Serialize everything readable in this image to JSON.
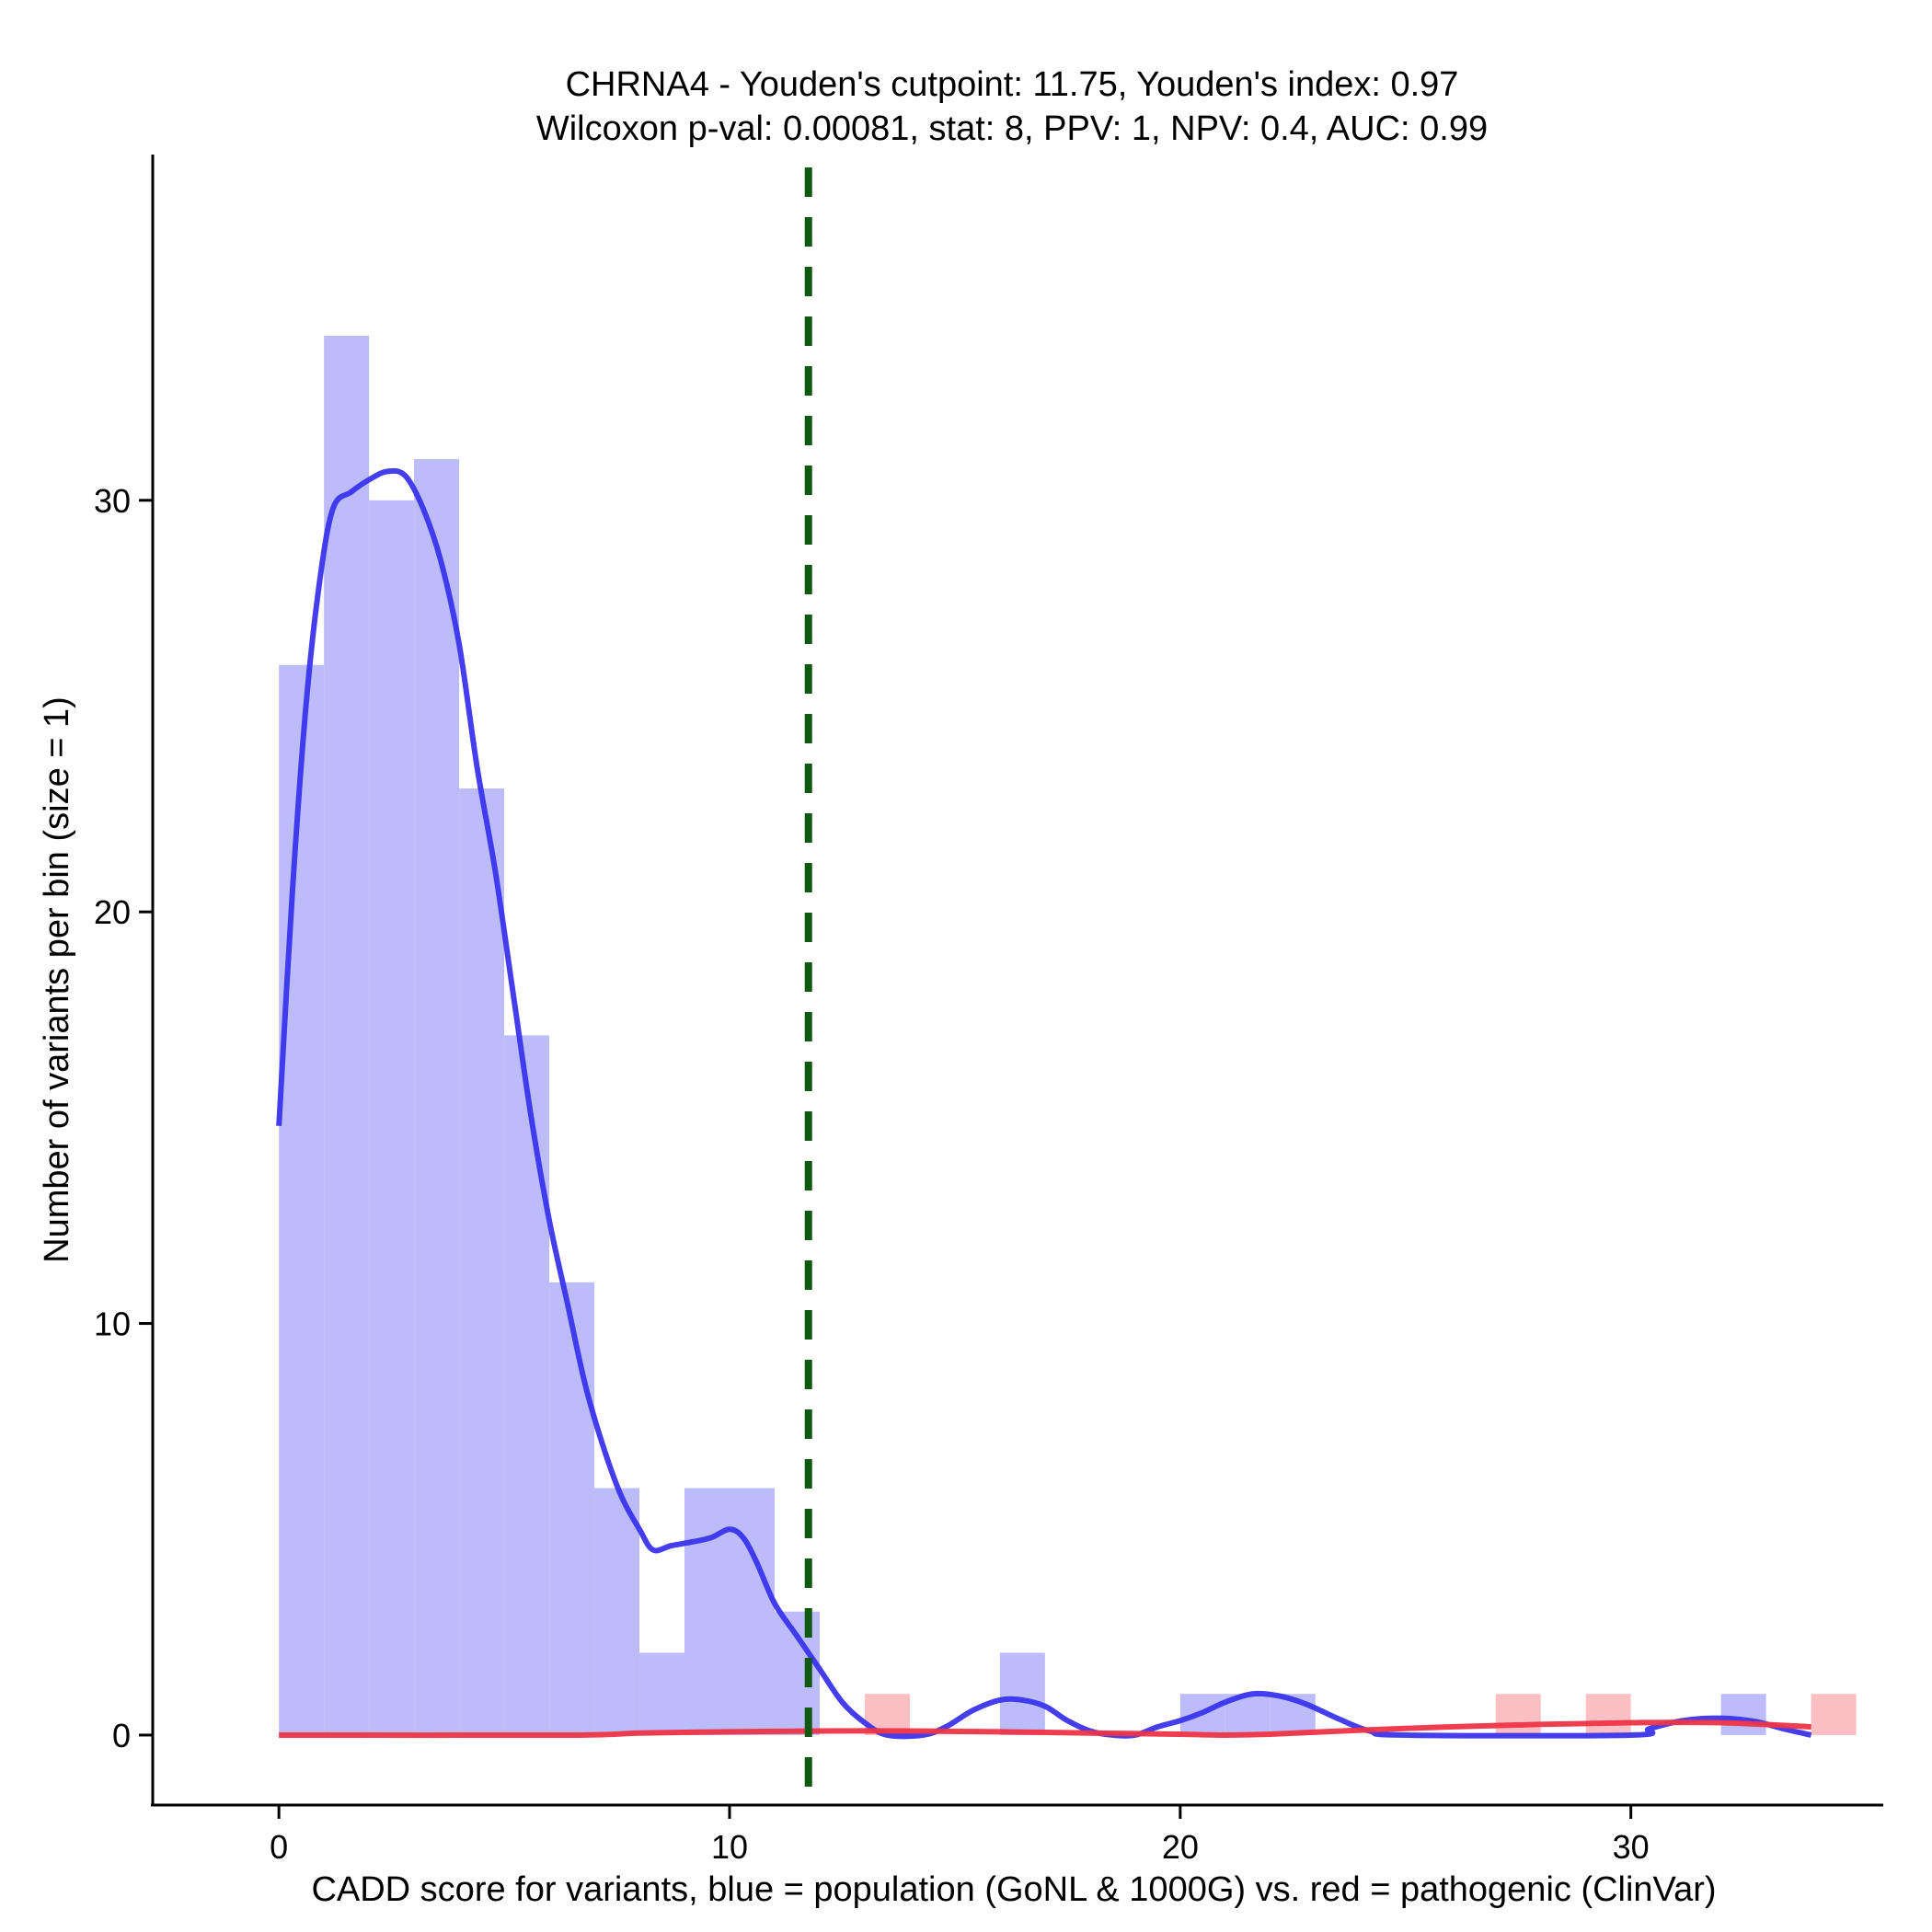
{
  "chart_data": {
    "type": "histogram",
    "title_lines": [
      "CHRNA4 - Youden's cutpoint: 11.75, Youden's index: 0.97",
      "Wilcoxon p-val: 0.00081, stat: 8, PPV: 1, NPV: 0.4, AUC: 0.99"
    ],
    "xlabel": "CADD score for variants, blue = population (GoNL & 1000G) vs. red = pathogenic (ClinVar)",
    "ylabel": "Number of variants per bin (size = 1)",
    "xlim": [
      -2.8,
      35.6
    ],
    "ylim": [
      -1.7,
      38.4
    ],
    "x_ticks": [
      0,
      10,
      20,
      30
    ],
    "y_ticks": [
      0,
      10,
      20,
      30
    ],
    "bin_width": 1,
    "cutpoint": 11.75,
    "colors": {
      "population_bar": "#bcbcfa",
      "pathogenic_bar": "#fbbfc4",
      "population_line": "#3a34ee",
      "pathogenic_line": "#ee3446",
      "cutpoint_line": "#0f5a10"
    },
    "series": [
      {
        "key": "population",
        "bins": [
          {
            "x0": 0,
            "count": 26
          },
          {
            "x0": 1,
            "count": 34
          },
          {
            "x0": 2,
            "count": 30
          },
          {
            "x0": 3,
            "count": 31
          },
          {
            "x0": 4,
            "count": 23
          },
          {
            "x0": 5,
            "count": 17
          },
          {
            "x0": 6,
            "count": 11
          },
          {
            "x0": 7,
            "count": 6
          },
          {
            "x0": 8,
            "count": 2
          },
          {
            "x0": 9,
            "count": 6
          },
          {
            "x0": 10,
            "count": 6
          },
          {
            "x0": 11,
            "count": 3
          },
          {
            "x0": 16,
            "count": 2
          },
          {
            "x0": 20,
            "count": 1
          },
          {
            "x0": 21,
            "count": 1
          },
          {
            "x0": 22,
            "count": 1
          },
          {
            "x0": 32,
            "count": 1
          }
        ],
        "density": [
          [
            0,
            14.8
          ],
          [
            0.3,
            20.5
          ],
          [
            0.6,
            25.0
          ],
          [
            0.9,
            28.0
          ],
          [
            1.2,
            29.8
          ],
          [
            1.6,
            30.2
          ],
          [
            2.0,
            30.5
          ],
          [
            2.4,
            30.7
          ],
          [
            2.8,
            30.6
          ],
          [
            3.2,
            29.8
          ],
          [
            3.6,
            28.5
          ],
          [
            4.0,
            26.5
          ],
          [
            4.4,
            23.5
          ],
          [
            4.8,
            21.0
          ],
          [
            5.2,
            18.0
          ],
          [
            5.6,
            15.0
          ],
          [
            6.0,
            12.5
          ],
          [
            6.4,
            10.5
          ],
          [
            6.8,
            8.5
          ],
          [
            7.2,
            7.0
          ],
          [
            7.6,
            5.8
          ],
          [
            8.0,
            5.0
          ],
          [
            8.3,
            4.5
          ],
          [
            8.7,
            4.6
          ],
          [
            9.2,
            4.7
          ],
          [
            9.6,
            4.8
          ],
          [
            10.0,
            5.0
          ],
          [
            10.3,
            4.8
          ],
          [
            10.6,
            4.2
          ],
          [
            11.0,
            3.2
          ],
          [
            11.5,
            2.4
          ],
          [
            12.0,
            1.6
          ],
          [
            12.5,
            0.8
          ],
          [
            13.0,
            0.3
          ],
          [
            13.5,
            0.0
          ],
          [
            14.3,
            0.0
          ],
          [
            14.8,
            0.2
          ],
          [
            15.4,
            0.6
          ],
          [
            16.0,
            0.85
          ],
          [
            16.5,
            0.85
          ],
          [
            17.0,
            0.7
          ],
          [
            17.5,
            0.35
          ],
          [
            18.0,
            0.1
          ],
          [
            18.5,
            0.0
          ],
          [
            19.0,
            0.0
          ],
          [
            19.5,
            0.2
          ],
          [
            20.0,
            0.35
          ],
          [
            20.5,
            0.55
          ],
          [
            21.0,
            0.8
          ],
          [
            21.6,
            1.0
          ],
          [
            22.2,
            0.95
          ],
          [
            22.8,
            0.75
          ],
          [
            23.5,
            0.4
          ],
          [
            24.2,
            0.1
          ],
          [
            25.0,
            0.0
          ],
          [
            30.0,
            0.0
          ],
          [
            30.4,
            0.15
          ],
          [
            31.0,
            0.32
          ],
          [
            31.6,
            0.4
          ],
          [
            32.2,
            0.4
          ],
          [
            32.8,
            0.32
          ],
          [
            33.4,
            0.15
          ],
          [
            34.0,
            0.0
          ]
        ]
      },
      {
        "key": "pathogenic",
        "bins": [
          {
            "x0": 13,
            "count": 1
          },
          {
            "x0": 27,
            "count": 1
          },
          {
            "x0": 29,
            "count": 1
          },
          {
            "x0": 34,
            "count": 1
          }
        ],
        "density": [
          [
            0,
            0.0
          ],
          [
            6.5,
            0.0
          ],
          [
            8.0,
            0.05
          ],
          [
            10.0,
            0.08
          ],
          [
            12.0,
            0.1
          ],
          [
            14.0,
            0.1
          ],
          [
            16.0,
            0.08
          ],
          [
            18.0,
            0.05
          ],
          [
            20.0,
            0.02
          ],
          [
            21.0,
            0.0
          ],
          [
            22.0,
            0.02
          ],
          [
            24.0,
            0.12
          ],
          [
            26.0,
            0.2
          ],
          [
            28.0,
            0.26
          ],
          [
            30.0,
            0.3
          ],
          [
            32.0,
            0.3
          ],
          [
            34.0,
            0.2
          ]
        ]
      }
    ]
  }
}
